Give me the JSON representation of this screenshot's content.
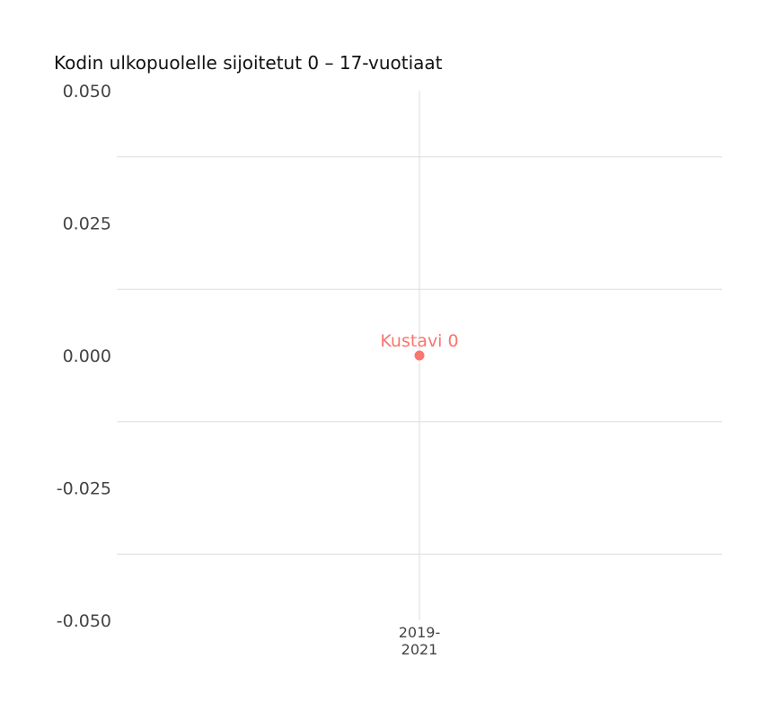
{
  "chart_data": {
    "type": "scatter",
    "title": "Kodin ulkopuolelle sijoitetut 0 – 17-vuotiaat",
    "xlabel": "",
    "ylabel": "",
    "categories": [
      "2019-2021"
    ],
    "x_tick_lines": [
      [
        "2019-",
        "2021"
      ]
    ],
    "ylim": [
      -0.05,
      0.05
    ],
    "y_ticks": [
      0.05,
      0.025,
      0.0,
      -0.025,
      -0.05
    ],
    "y_tick_labels": [
      "0.050",
      "0.025",
      "0.000",
      "-0.025",
      "-0.050"
    ],
    "grid": true,
    "legend": "none",
    "series": [
      {
        "name": "Kustavi",
        "color": "#f8766d",
        "points": [
          {
            "x": "2019-2021",
            "y": 0,
            "label": "Kustavi 0"
          }
        ]
      }
    ]
  }
}
